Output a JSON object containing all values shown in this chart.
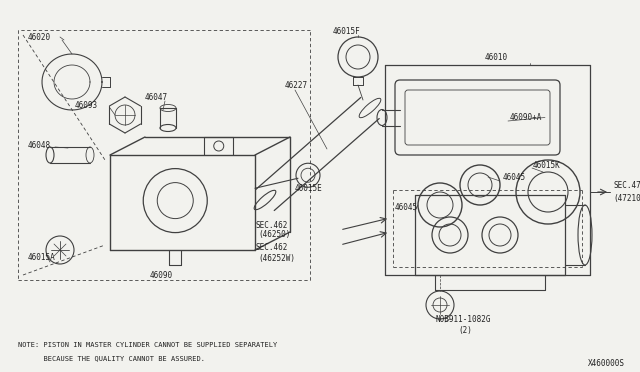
{
  "bg_color": "#f2f2ee",
  "line_color": "#404040",
  "text_color": "#222222",
  "note_line1": "NOTE: PISTON IN MASTER CYLINDER CANNOT BE SUPPLIED SEPARATELY",
  "note_line2": "      BECAUSE THE QUALITY CANNOT BE ASSURED.",
  "diagram_id": "X460000S",
  "fs": 5.5,
  "fs_note": 5.0
}
